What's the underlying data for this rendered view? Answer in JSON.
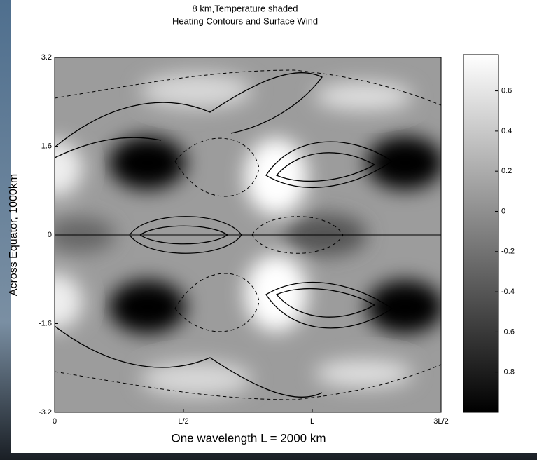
{
  "chart_data": {
    "type": "contour",
    "title": "8 km,Temperature shaded",
    "subtitle": "Heating Contours and Surface Wind",
    "xlabel": "One wavelength L = 2000 km",
    "ylabel": "Across Equator, 1000km",
    "xlim": [
      0,
      1.5
    ],
    "xticks": [
      0,
      {
        "value": 0.5,
        "label": "L/2"
      },
      {
        "value": 1,
        "label": "L"
      },
      {
        "value": 1.5,
        "label": "3L/2"
      }
    ],
    "ylim": [
      -3.2,
      3.2
    ],
    "yticks": [
      -3.2,
      -1.6,
      0,
      1.6,
      3.2
    ],
    "colorbar": {
      "lim": [
        -1,
        0.78
      ],
      "ticks": [
        0.6,
        0.4,
        0.2,
        0,
        -0.2,
        -0.4,
        -0.6,
        -0.8
      ]
    }
  }
}
